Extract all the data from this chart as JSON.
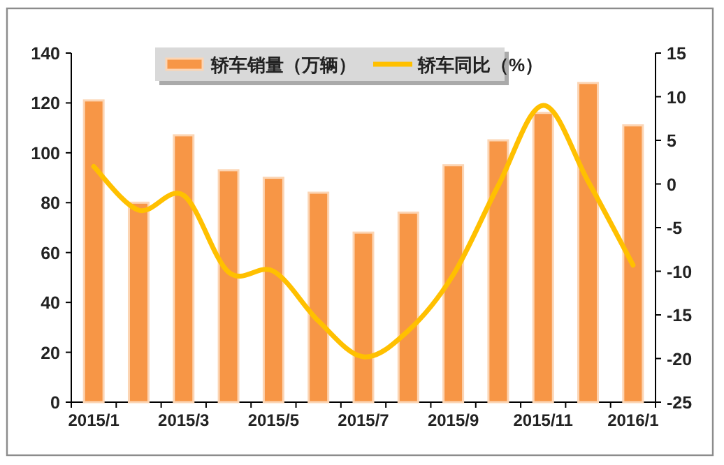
{
  "chart_data": {
    "type": "bar",
    "categories": [
      "2015/1",
      null,
      "2015/3",
      null,
      "2015/5",
      null,
      "2015/7",
      null,
      "2015/9",
      null,
      "2015/11",
      null,
      "2016/1"
    ],
    "series": [
      {
        "name": "轿车销量（万辆）",
        "color": "#f79646",
        "values": [
          121,
          80,
          107,
          93,
          90,
          84,
          68,
          76,
          95,
          105,
          116,
          128,
          111
        ]
      },
      {
        "name": "轿车同比（%）",
        "type": "line",
        "axis": "y2",
        "color": "#ffc000",
        "values": [
          2,
          -3,
          -1.3,
          -10.1,
          -10,
          -15.7,
          -19.8,
          -16.8,
          -10.4,
          -0.2,
          9,
          0.3,
          -9.3
        ]
      }
    ],
    "ylim": [
      0,
      140
    ],
    "yticks": [
      0,
      20,
      40,
      60,
      80,
      100,
      120,
      140
    ],
    "y2lim": [
      -25,
      15
    ],
    "y2ticks": [
      -25,
      -20,
      -15,
      -10,
      -5,
      0,
      5,
      10,
      15
    ],
    "legend": "top",
    "grid": false
  }
}
